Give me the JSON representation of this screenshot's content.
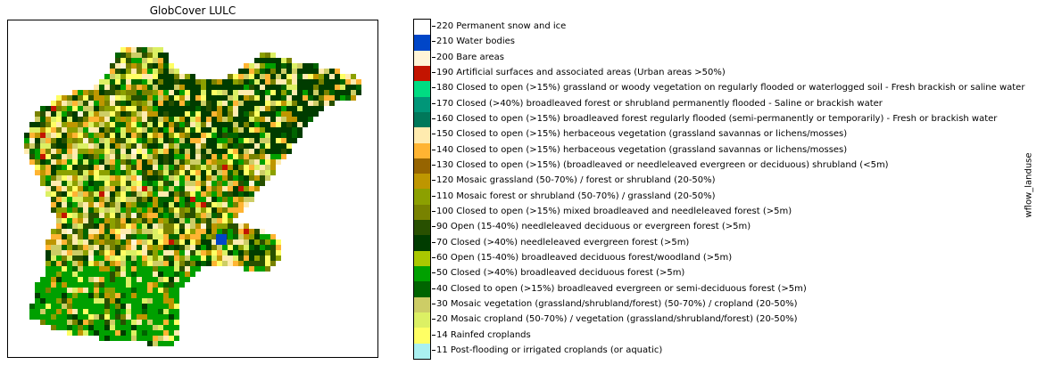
{
  "chart_data": {
    "type": "heatmap",
    "title": "GlobCover LULC",
    "colorbar_label": "wflow_landuse",
    "axes_ticks": "hidden",
    "classes": [
      {
        "value": 11,
        "label": "11 Post-flooding or irrigated croplands (or aquatic)",
        "color": "#aaf0f0"
      },
      {
        "value": 14,
        "label": "14 Rainfed croplands",
        "color": "#ffff64"
      },
      {
        "value": 20,
        "label": "20 Mosaic cropland (50-70%) / vegetation (grassland/shrubland/forest) (20-50%)",
        "color": "#dcf064"
      },
      {
        "value": 30,
        "label": "30 Mosaic vegetation (grassland/shrubland/forest) (50-70%) / cropland (20-50%)",
        "color": "#cdcd66"
      },
      {
        "value": 40,
        "label": "40 Closed to open (>15%) broadleaved evergreen or semi-deciduous forest (>5m)",
        "color": "#006400"
      },
      {
        "value": 50,
        "label": "50 Closed (>40%) broadleaved deciduous forest (>5m)",
        "color": "#00a000"
      },
      {
        "value": 60,
        "label": "60 Open (15-40%) broadleaved deciduous forest/woodland (>5m)",
        "color": "#aac800"
      },
      {
        "value": 70,
        "label": "70 Closed (>40%) needleleaved evergreen forest (>5m)",
        "color": "#003c00"
      },
      {
        "value": 90,
        "label": "90 Open (15-40%) needleleaved deciduous or evergreen forest (>5m)",
        "color": "#285000"
      },
      {
        "value": 100,
        "label": "100 Closed to open (>15%) mixed broadleaved and needleleaved forest (>5m)",
        "color": "#788200"
      },
      {
        "value": 110,
        "label": "110 Mosaic forest or shrubland (50-70%) / grassland (20-50%)",
        "color": "#8ca000"
      },
      {
        "value": 120,
        "label": "120 Mosaic grassland (50-70%) / forest or shrubland (20-50%)",
        "color": "#be9600"
      },
      {
        "value": 130,
        "label": "130 Closed to open (>15%) (broadleaved or needleleaved evergreen or deciduous) shrubland (<5m)",
        "color": "#966400"
      },
      {
        "value": 140,
        "label": "140 Closed to open (>15%) herbaceous vegetation (grassland savannas or lichens/mosses)",
        "color": "#ffb432"
      },
      {
        "value": 150,
        "label": "150 Closed to open (>15%) herbaceous vegetation (grassland savannas or lichens/mosses)",
        "color": "#ffebaf"
      },
      {
        "value": 160,
        "label": "160 Closed to open (>15%) broadleaved forest regularly flooded (semi-permanently or temporarily) - Fresh or brackish water",
        "color": "#00785a"
      },
      {
        "value": 170,
        "label": "170 Closed (>40%) broadleaved forest or shrubland permanently flooded - Saline or brackish water",
        "color": "#009678"
      },
      {
        "value": 180,
        "label": "180 Closed to open (>15%) grassland or woody vegetation on regularly flooded or waterlogged soil -  Fresh brackish or saline water",
        "color": "#00dc82"
      },
      {
        "value": 190,
        "label": "190 Artificial surfaces and associated areas (Urban areas >50%)",
        "color": "#c31400"
      },
      {
        "value": 200,
        "label": "200 Bare areas",
        "color": "#fff5d7"
      },
      {
        "value": 210,
        "label": "210 Water bodies",
        "color": "#0046c8"
      },
      {
        "value": 220,
        "label": "220 Permanent snow and ice",
        "color": "#ffffff"
      }
    ]
  },
  "map_region": {
    "fill_colors": [
      "#003c00",
      "#00a000",
      "#dcf064",
      "#ffff64",
      "#cdcd66",
      "#788200",
      "#8ca000",
      "#be9600",
      "#ffebaf",
      "#006400",
      "#285000",
      "#ffb432"
    ]
  }
}
